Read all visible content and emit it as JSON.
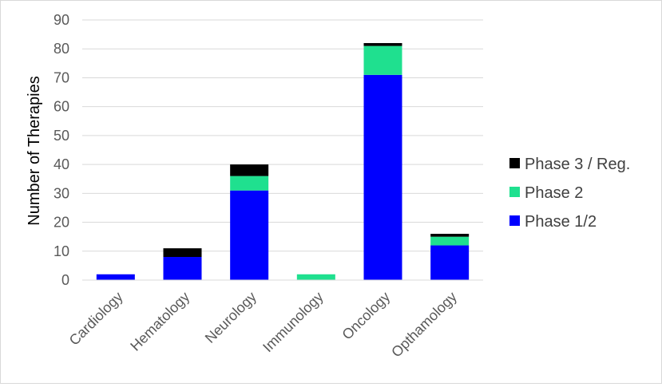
{
  "chart_data": {
    "type": "bar",
    "stacked": true,
    "title": "",
    "xlabel": "",
    "ylabel": "Number of Therapies",
    "ylim": [
      0,
      90
    ],
    "yticks": [
      0,
      10,
      20,
      30,
      40,
      50,
      60,
      70,
      80,
      90
    ],
    "grid": true,
    "legend_position": "right",
    "categories": [
      "Cardiology",
      "Hematology",
      "Neurology",
      "Immunology",
      "Oncology",
      "Opthamology"
    ],
    "series": [
      {
        "name": "Phase 1/2",
        "color": "#0000ff",
        "values": [
          2,
          8,
          31,
          0,
          71,
          12
        ]
      },
      {
        "name": "Phase 2",
        "color": "#1fe08f",
        "values": [
          0,
          0,
          5,
          2,
          10,
          3
        ]
      },
      {
        "name": "Phase 3 / Reg.",
        "color": "#000000",
        "values": [
          0,
          3,
          4,
          0,
          1,
          1
        ]
      }
    ],
    "legend_order": [
      "Phase 3 / Reg.",
      "Phase 2",
      "Phase 1/2"
    ]
  }
}
